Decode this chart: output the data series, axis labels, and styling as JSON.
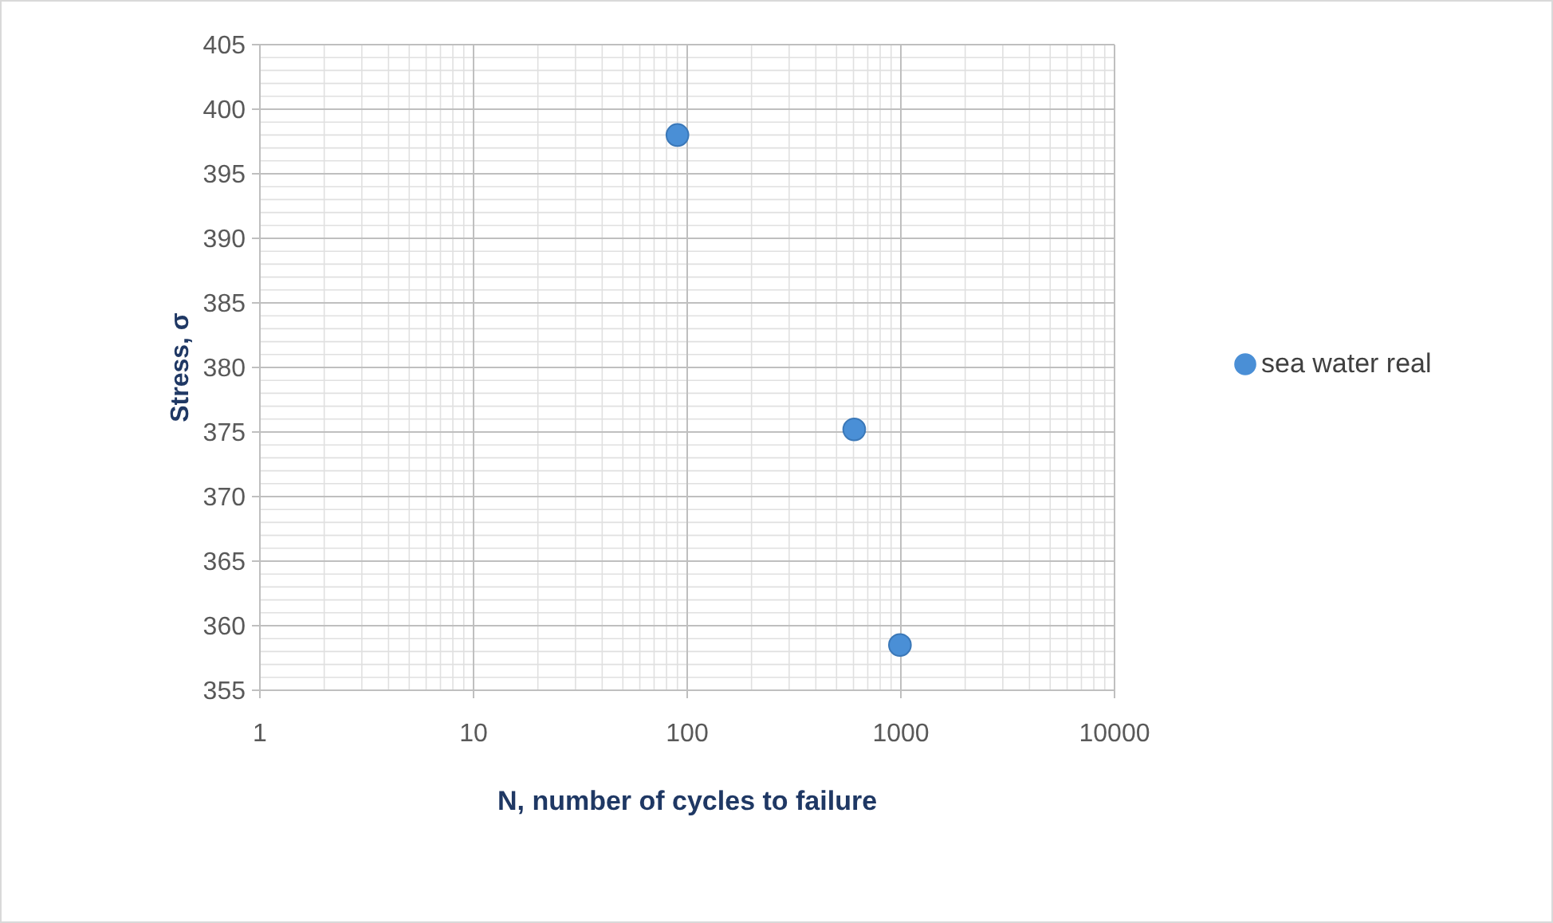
{
  "chart_data": {
    "type": "scatter",
    "xlabel": "N, number of cycles to failure",
    "ylabel": "Stress, σ",
    "log": "x",
    "x": [
      90,
      605,
      990
    ],
    "series": [
      {
        "name": "sea water real",
        "color": "#4a8fd6",
        "values": [
          398,
          375.2,
          358.5
        ]
      }
    ],
    "xlim": [
      1,
      10000
    ],
    "xticks": [
      1,
      10,
      100,
      1000,
      10000
    ],
    "ylim": [
      355,
      405
    ],
    "yticks": [
      355,
      360,
      365,
      370,
      375,
      380,
      385,
      390,
      395,
      400,
      405
    ],
    "grid": true,
    "legend": "right",
    "marker": "circle"
  }
}
